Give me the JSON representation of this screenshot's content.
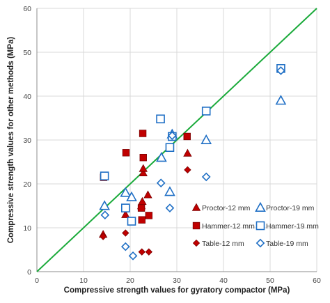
{
  "chart_data": {
    "type": "scatter",
    "title": "",
    "xlabel": "Compressive strength values for gyratory compactor (MPa)",
    "ylabel": "Compressive strength values for other methods (MPa)",
    "xlim": [
      0,
      60
    ],
    "ylim": [
      0,
      60
    ],
    "xticks": [
      0,
      10,
      20,
      30,
      40,
      50,
      60
    ],
    "yticks": [
      0,
      10,
      20,
      30,
      40,
      50,
      60
    ],
    "grid": true,
    "legend_position": "bottom-right",
    "reference_line": {
      "x": [
        0,
        60
      ],
      "y": [
        0,
        60
      ],
      "color": "#1aaa3a"
    },
    "series": [
      {
        "name": "Proctor-12 mm",
        "marker": "triangle",
        "filled": true,
        "color": "#c00000",
        "points": [
          [
            14.2,
            8.5
          ],
          [
            19.0,
            13.0
          ],
          [
            22.4,
            15.0
          ],
          [
            22.6,
            16.0
          ],
          [
            22.8,
            22.5
          ],
          [
            22.8,
            23.5
          ],
          [
            23.8,
            17.5
          ],
          [
            32.3,
            27.0
          ]
        ]
      },
      {
        "name": "Proctor-19 mm",
        "marker": "triangle",
        "filled": false,
        "color": "#1f6fc5",
        "points": [
          [
            14.5,
            15.0
          ],
          [
            19.0,
            18.0
          ],
          [
            20.3,
            17.0
          ],
          [
            26.7,
            26.0
          ],
          [
            28.5,
            18.2
          ],
          [
            29.0,
            31.3
          ],
          [
            36.3,
            30.0
          ],
          [
            52.3,
            39.0
          ]
        ]
      },
      {
        "name": "Hammer-12 mm",
        "marker": "square",
        "filled": true,
        "color": "#c00000",
        "points": [
          [
            14.3,
            21.5
          ],
          [
            19.1,
            27.1
          ],
          [
            22.7,
            31.5
          ],
          [
            22.8,
            26.0
          ],
          [
            22.5,
            11.8
          ],
          [
            22.4,
            14.5
          ],
          [
            24.0,
            12.8
          ],
          [
            32.2,
            30.8
          ]
        ]
      },
      {
        "name": "Hammer-19 mm",
        "marker": "square",
        "filled": false,
        "color": "#1f6fc5",
        "points": [
          [
            14.5,
            21.8
          ],
          [
            19.0,
            14.5
          ],
          [
            20.3,
            11.5
          ],
          [
            26.5,
            34.8
          ],
          [
            28.5,
            28.3
          ],
          [
            29.0,
            30.8
          ],
          [
            36.3,
            36.6
          ],
          [
            52.3,
            46.3
          ]
        ]
      },
      {
        "name": "Table-12 mm",
        "marker": "diamond",
        "filled": true,
        "color": "#c00000",
        "points": [
          [
            14.2,
            8.0
          ],
          [
            19.0,
            8.8
          ],
          [
            22.5,
            4.5
          ],
          [
            24.0,
            4.5
          ],
          [
            32.3,
            23.2
          ]
        ]
      },
      {
        "name": "Table-19 mm",
        "marker": "diamond",
        "filled": false,
        "color": "#1f6fc5",
        "points": [
          [
            14.6,
            12.9
          ],
          [
            19.0,
            5.7
          ],
          [
            20.6,
            3.6
          ],
          [
            26.6,
            20.2
          ],
          [
            28.5,
            14.5
          ],
          [
            29.0,
            31.0
          ],
          [
            36.3,
            21.6
          ],
          [
            52.3,
            45.8
          ]
        ]
      }
    ]
  }
}
